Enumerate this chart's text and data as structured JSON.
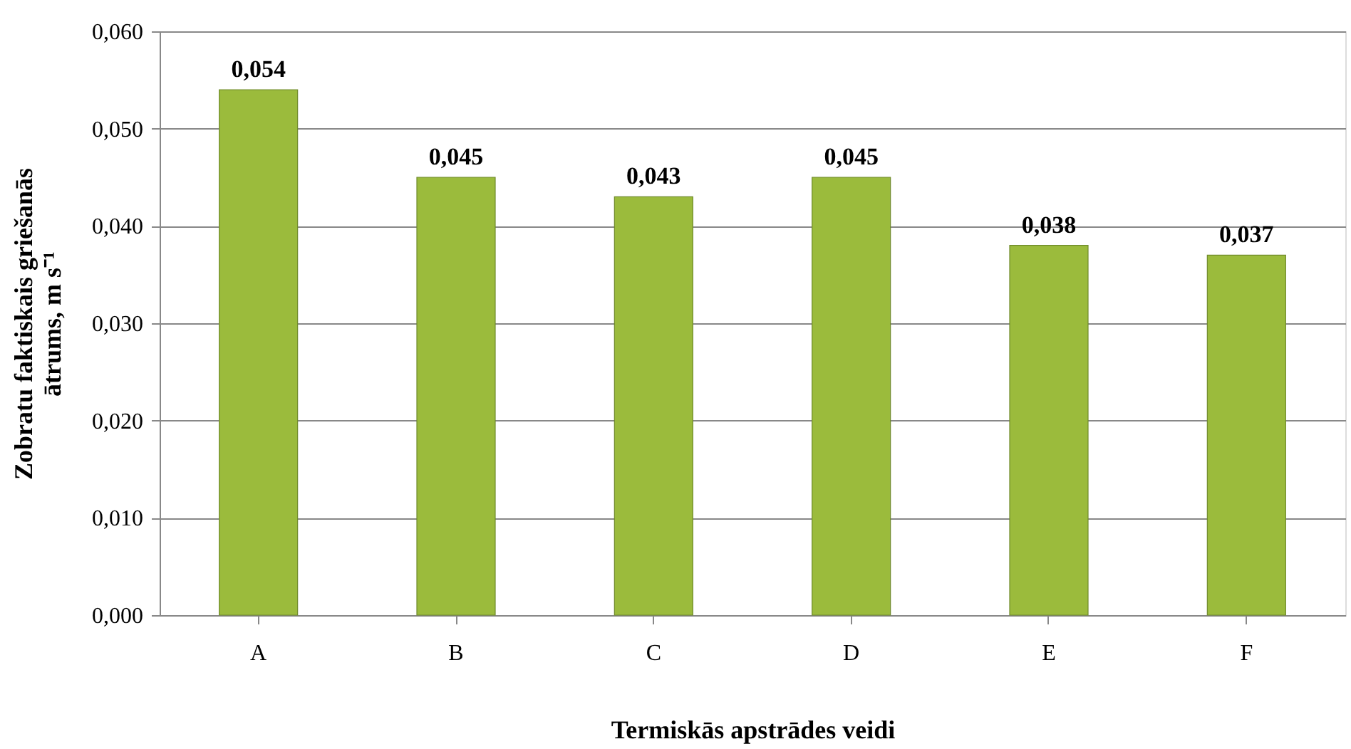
{
  "chart_data": {
    "type": "bar",
    "categories": [
      "A",
      "B",
      "C",
      "D",
      "E",
      "F"
    ],
    "values": [
      0.054,
      0.045,
      0.043,
      0.045,
      0.038,
      0.037
    ],
    "value_labels": [
      "0,054",
      "0,045",
      "0,043",
      "0,045",
      "0,038",
      "0,037"
    ],
    "color": "#9bbb3c",
    "xlabel": "Termiskās apstrādes veidi",
    "ylabel": "Zobratu faktiskais griešanās\nātrums, m s⁻¹",
    "ylim": [
      0,
      0.06
    ],
    "yticks": [
      {
        "value": 0,
        "label": "0,000"
      },
      {
        "value": 0.01,
        "label": "0,010"
      },
      {
        "value": 0.02,
        "label": "0,020"
      },
      {
        "value": 0.03,
        "label": "0,030"
      },
      {
        "value": 0.04,
        "label": "0,040"
      },
      {
        "value": 0.05,
        "label": "0,050"
      },
      {
        "value": 0.06,
        "label": "0,060"
      }
    ],
    "grid": "y"
  }
}
